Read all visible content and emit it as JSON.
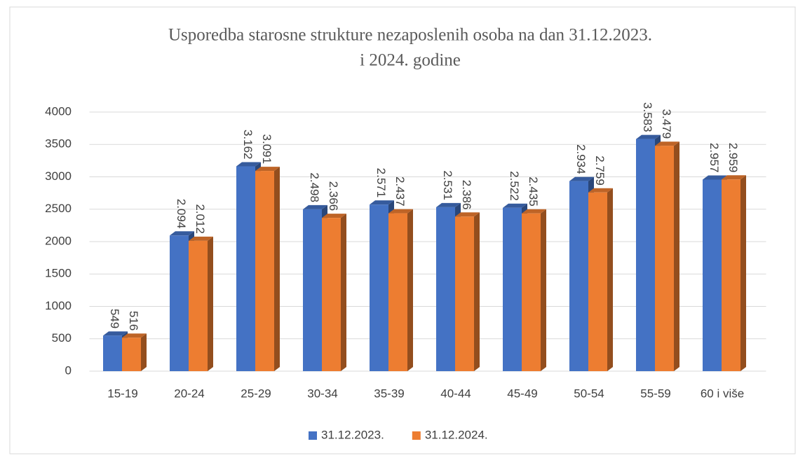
{
  "chart_data": {
    "type": "bar3d",
    "title": [
      "Usporedba starosne strukture nezaposlenih osoba na dan 31.12.2023.",
      "i 2024.  godine"
    ],
    "categories": [
      "15-19",
      "20-24",
      "25-29",
      "30-34",
      "35-39",
      "40-44",
      "45-49",
      "50-54",
      "55-59",
      "60 i više"
    ],
    "series": [
      {
        "name": "31.12.2023.",
        "color": "#4472c4",
        "values": [
          549,
          2094,
          3162,
          2498,
          2571,
          2531,
          2522,
          2934,
          3583,
          2957
        ],
        "value_labels": [
          "549",
          "2.094",
          "3.162",
          "2.498",
          "2.571",
          "2.531",
          "2.522",
          "2.934",
          "3.583",
          "2.957"
        ]
      },
      {
        "name": "31.12.2024.",
        "color": "#ed7d31",
        "values": [
          516,
          2012,
          3091,
          2366,
          2437,
          2386,
          2435,
          2759,
          3479,
          2959
        ],
        "value_labels": [
          "516",
          "2.012",
          "3.091",
          "2.366",
          "2.437",
          "2.386",
          "2.435",
          "2.759",
          "3.479",
          "2.959"
        ]
      }
    ],
    "ylim": [
      0,
      4000
    ],
    "yticks": [
      0,
      500,
      1000,
      1500,
      2000,
      2500,
      3000,
      3500,
      4000
    ],
    "grid": true,
    "legend": "bottom"
  }
}
